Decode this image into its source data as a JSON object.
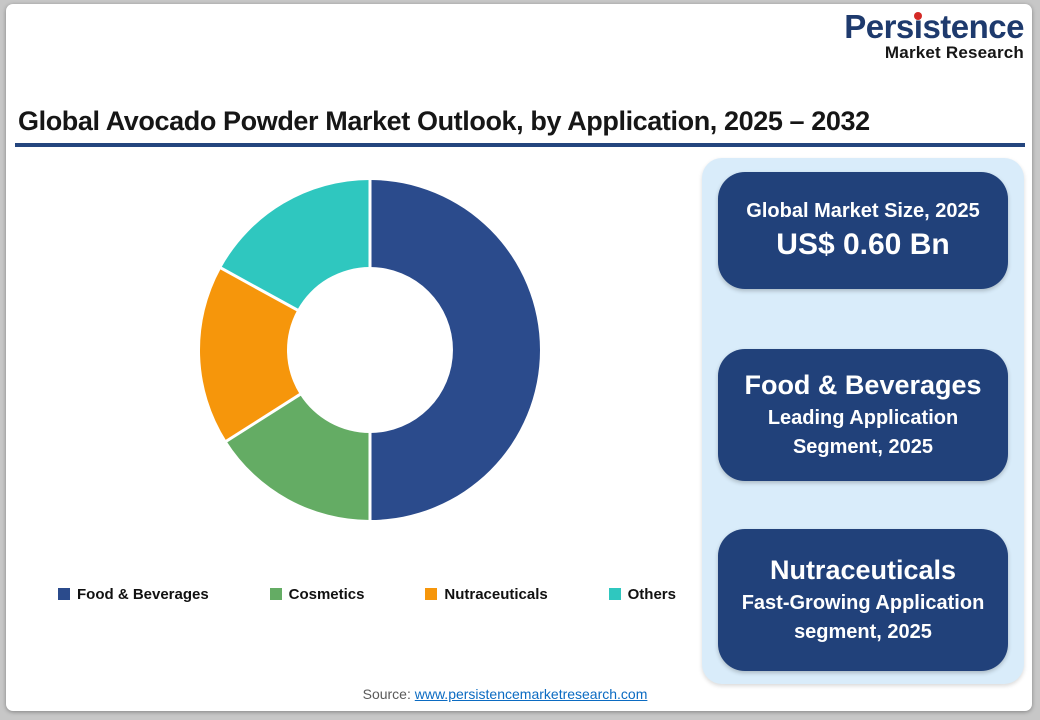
{
  "brand": {
    "name_pre": "Pers",
    "name_i": "ı",
    "name_post": "stence",
    "tagline": "Market Research",
    "navy": "#1e3a6d",
    "red_dot": "#d42a26"
  },
  "title": {
    "text": "Global Avocado Powder Market Outlook, by Application, 2025 – 2032",
    "underline_color": "#24457e"
  },
  "chart_data": {
    "type": "pie",
    "subtype": "donut",
    "title": "Global Avocado Powder Market Outlook, by Application, 2025 – 2032",
    "start_angle_deg": 0,
    "direction": "clockwise",
    "inner_radius_ratio": 0.49,
    "unit": "%",
    "values_estimated_from_arcs": true,
    "legend_position": "bottom",
    "segments": [
      {
        "label": "Food & Beverages",
        "value": 50,
        "color": "#2b4b8c"
      },
      {
        "label": "Cosmetics",
        "value": 16,
        "color": "#64ac64"
      },
      {
        "label": "Nutraceuticals",
        "value": 17,
        "color": "#f6960b"
      },
      {
        "label": "Others",
        "value": 17,
        "color": "#2fc7bf"
      }
    ]
  },
  "side_panel": {
    "bg": "#d9ecfa",
    "card_bg": "#21417a",
    "cards": [
      {
        "title": "Global Market Size, 2025",
        "value": "US$ 0.60 Bn"
      },
      {
        "title": "Food & Beverages",
        "subtitle": "Leading Application Segment, 2025"
      },
      {
        "title": "Nutraceuticals",
        "subtitle": "Fast-Growing Application segment, 2025"
      }
    ]
  },
  "footer": {
    "source_label": "Source:",
    "source_link": "www.persistencemarketresearch.com"
  }
}
